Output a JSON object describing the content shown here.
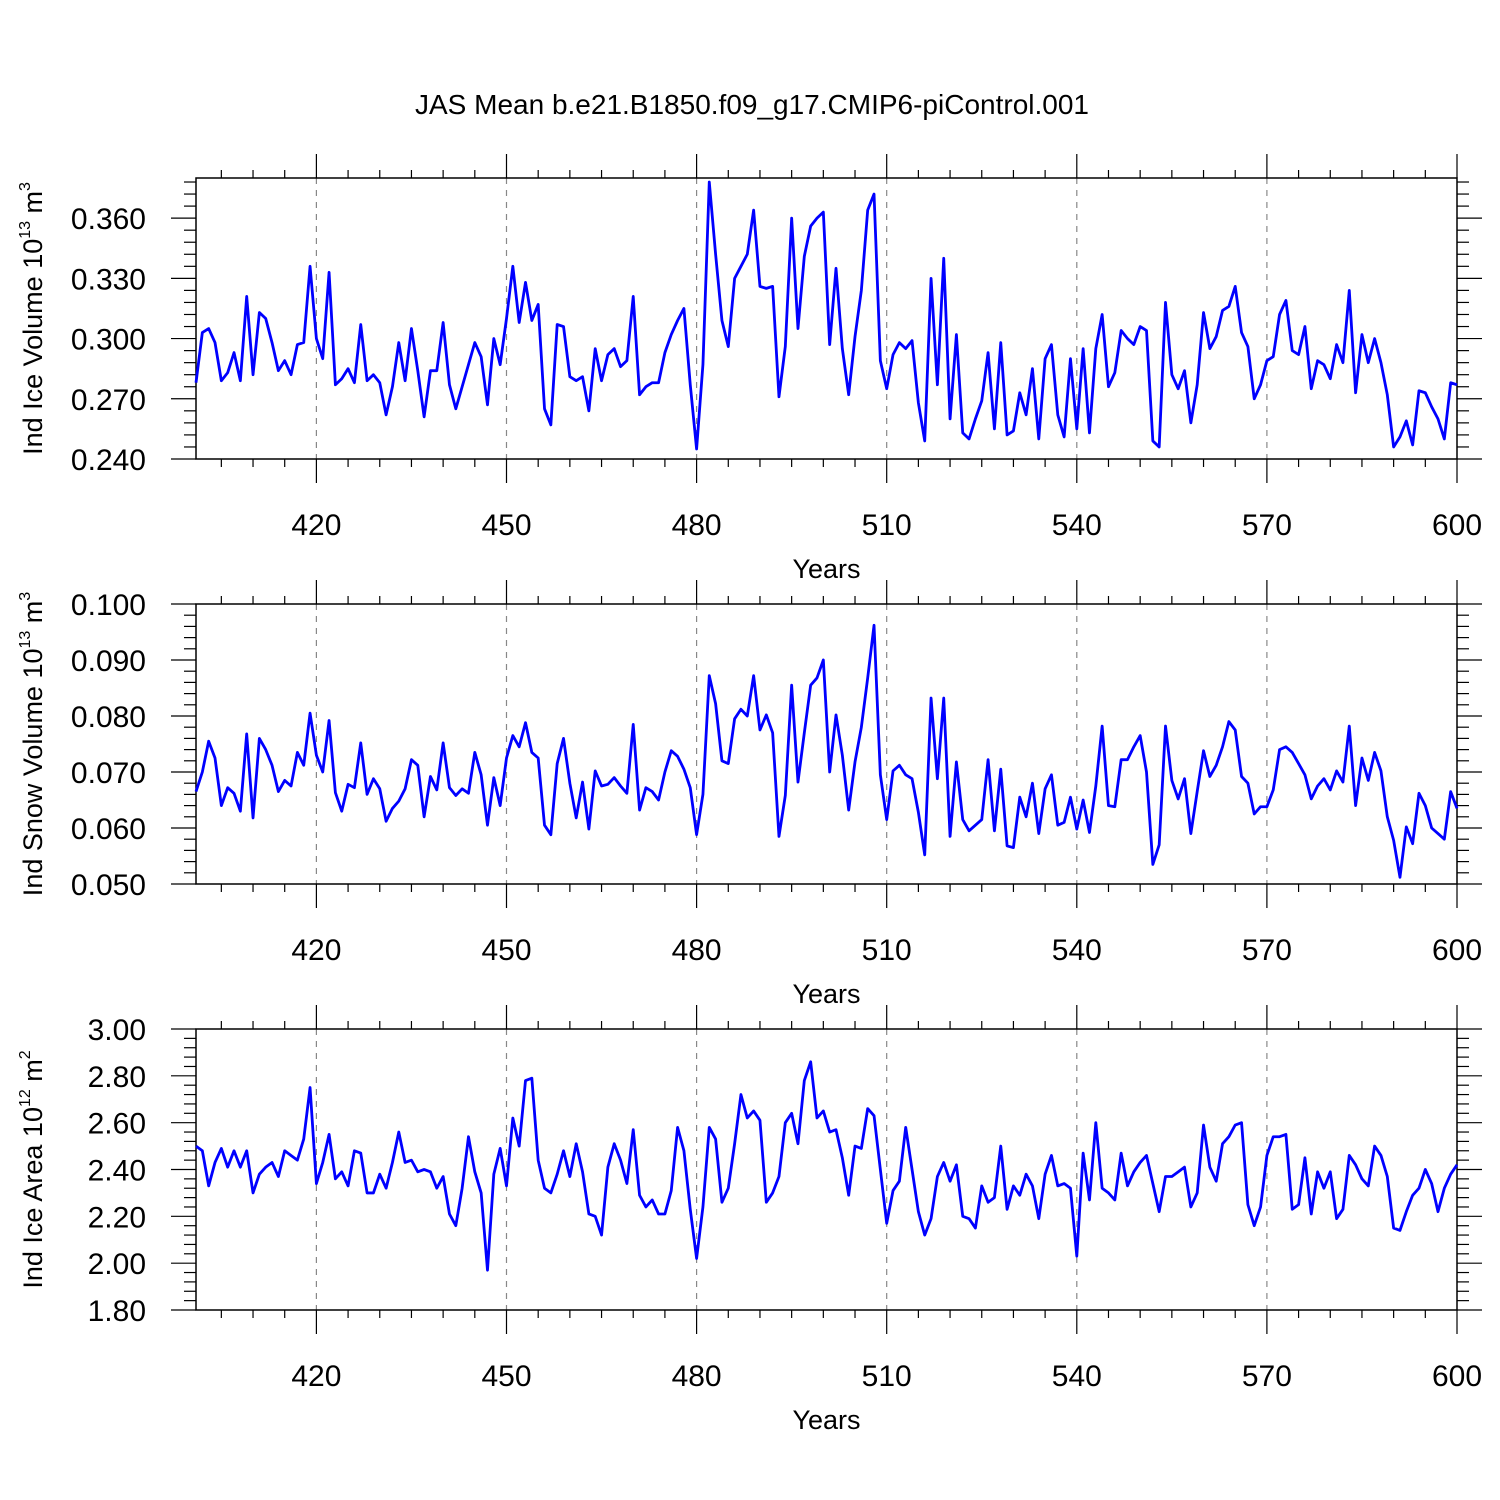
{
  "title": "JAS Mean b.e21.B1850.f09_g17.CMIP6-piControl.001",
  "colors": {
    "line": "#0000ff",
    "axis": "#000000",
    "grid": "#888888"
  },
  "chart_data": [
    {
      "type": "line",
      "id": "ice-volume",
      "ylabel_main": "Ind Ice Volume 10",
      "ylabel_exp": "13",
      "ylabel_unit": " m",
      "ylabel_unit_exp": "3",
      "xlabel": "Years",
      "xlim": [
        401,
        600
      ],
      "ylim": [
        0.24,
        0.38
      ],
      "yticks": [
        0.24,
        0.27,
        0.3,
        0.33,
        0.36
      ],
      "ytick_labels": [
        "0.240",
        "0.270",
        "0.300",
        "0.330",
        "0.360"
      ],
      "xticks": [
        420,
        450,
        480,
        510,
        540,
        570,
        600
      ],
      "xtick_labels": [
        "420",
        "450",
        "480",
        "510",
        "540",
        "570",
        "600"
      ],
      "grid_x": [
        420,
        450,
        480,
        510,
        540,
        570
      ],
      "x_start": 401,
      "values": [
        0.278,
        0.303,
        0.305,
        0.298,
        0.279,
        0.283,
        0.293,
        0.279,
        0.321,
        0.282,
        0.313,
        0.31,
        0.298,
        0.284,
        0.289,
        0.282,
        0.297,
        0.298,
        0.336,
        0.3,
        0.29,
        0.333,
        0.277,
        0.28,
        0.285,
        0.278,
        0.307,
        0.279,
        0.282,
        0.278,
        0.262,
        0.276,
        0.298,
        0.279,
        0.305,
        0.284,
        0.261,
        0.284,
        0.284,
        0.308,
        0.277,
        0.265,
        0.276,
        0.287,
        0.298,
        0.291,
        0.267,
        0.3,
        0.287,
        0.31,
        0.336,
        0.308,
        0.328,
        0.309,
        0.317,
        0.265,
        0.257,
        0.307,
        0.306,
        0.281,
        0.279,
        0.281,
        0.264,
        0.295,
        0.279,
        0.292,
        0.295,
        0.286,
        0.289,
        0.321,
        0.272,
        0.276,
        0.278,
        0.278,
        0.293,
        0.302,
        0.309,
        0.315,
        0.277,
        0.245,
        0.287,
        0.378,
        0.342,
        0.309,
        0.296,
        0.33,
        0.336,
        0.342,
        0.364,
        0.326,
        0.325,
        0.326,
        0.271,
        0.296,
        0.36,
        0.305,
        0.341,
        0.356,
        0.36,
        0.363,
        0.297,
        0.335,
        0.295,
        0.272,
        0.301,
        0.324,
        0.364,
        0.372,
        0.289,
        0.275,
        0.292,
        0.298,
        0.295,
        0.299,
        0.268,
        0.249,
        0.33,
        0.277,
        0.34,
        0.26,
        0.302,
        0.253,
        0.25,
        0.26,
        0.269,
        0.293,
        0.255,
        0.298,
        0.252,
        0.254,
        0.273,
        0.262,
        0.285,
        0.25,
        0.29,
        0.297,
        0.262,
        0.251,
        0.29,
        0.255,
        0.295,
        0.253,
        0.295,
        0.312,
        0.276,
        0.283,
        0.304,
        0.3,
        0.297,
        0.306,
        0.304,
        0.249,
        0.246,
        0.318,
        0.282,
        0.275,
        0.284,
        0.258,
        0.277,
        0.313,
        0.295,
        0.301,
        0.314,
        0.316,
        0.326,
        0.303,
        0.296,
        0.27,
        0.277,
        0.289,
        0.291,
        0.312,
        0.319,
        0.294,
        0.292,
        0.306,
        0.275,
        0.289,
        0.287,
        0.28,
        0.297,
        0.288,
        0.324,
        0.273,
        0.302,
        0.288,
        0.3,
        0.288,
        0.272,
        0.246,
        0.251,
        0.259,
        0.247,
        0.274,
        0.273,
        0.266,
        0.26,
        0.25,
        0.278,
        0.277
      ]
    },
    {
      "type": "line",
      "id": "snow-volume",
      "ylabel_main": "Ind Snow Volume 10",
      "ylabel_exp": "13",
      "ylabel_unit": " m",
      "ylabel_unit_exp": "3",
      "xlabel": "Years",
      "xlim": [
        401,
        600
      ],
      "ylim": [
        0.05,
        0.1
      ],
      "yticks": [
        0.05,
        0.06,
        0.07,
        0.08,
        0.09,
        0.1
      ],
      "ytick_labels": [
        "0.050",
        "0.060",
        "0.070",
        "0.080",
        "0.090",
        "0.100"
      ],
      "xticks": [
        420,
        450,
        480,
        510,
        540,
        570,
        600
      ],
      "xtick_labels": [
        "420",
        "450",
        "480",
        "510",
        "540",
        "570",
        "600"
      ],
      "grid_x": [
        420,
        450,
        480,
        510,
        540,
        570
      ],
      "x_start": 401,
      "values": [
        0.0665,
        0.07,
        0.0755,
        0.0725,
        0.064,
        0.0672,
        0.0662,
        0.063,
        0.0768,
        0.0618,
        0.076,
        0.074,
        0.0712,
        0.0665,
        0.0685,
        0.0675,
        0.0735,
        0.0712,
        0.0805,
        0.073,
        0.07,
        0.0792,
        0.0663,
        0.063,
        0.0678,
        0.0672,
        0.0752,
        0.066,
        0.0688,
        0.067,
        0.0612,
        0.0635,
        0.0648,
        0.067,
        0.0722,
        0.0712,
        0.062,
        0.0692,
        0.0668,
        0.0752,
        0.0672,
        0.0658,
        0.067,
        0.0662,
        0.0735,
        0.0695,
        0.0605,
        0.069,
        0.064,
        0.0725,
        0.0765,
        0.0745,
        0.0788,
        0.0735,
        0.0725,
        0.0605,
        0.0588,
        0.0715,
        0.076,
        0.068,
        0.0618,
        0.0682,
        0.0598,
        0.0702,
        0.0675,
        0.0678,
        0.069,
        0.0675,
        0.0662,
        0.0785,
        0.0632,
        0.0672,
        0.0665,
        0.065,
        0.07,
        0.0738,
        0.0728,
        0.0705,
        0.0672,
        0.0588,
        0.066,
        0.0872,
        0.0822,
        0.072,
        0.0715,
        0.0795,
        0.0812,
        0.08,
        0.0872,
        0.0775,
        0.0802,
        0.077,
        0.0585,
        0.0658,
        0.0855,
        0.0682,
        0.077,
        0.0855,
        0.0868,
        0.09,
        0.07,
        0.0802,
        0.073,
        0.0632,
        0.0718,
        0.078,
        0.0868,
        0.0962,
        0.0695,
        0.0615,
        0.0702,
        0.0712,
        0.0695,
        0.0688,
        0.0628,
        0.0552,
        0.0832,
        0.0688,
        0.0832,
        0.0585,
        0.0718,
        0.0615,
        0.0595,
        0.0605,
        0.0615,
        0.0722,
        0.0595,
        0.0705,
        0.0568,
        0.0565,
        0.0655,
        0.062,
        0.068,
        0.059,
        0.067,
        0.0695,
        0.0605,
        0.061,
        0.0655,
        0.0598,
        0.065,
        0.0592,
        0.0675,
        0.0782,
        0.064,
        0.0638,
        0.0722,
        0.0722,
        0.0745,
        0.0765,
        0.07,
        0.0535,
        0.057,
        0.0782,
        0.0685,
        0.0652,
        0.0688,
        0.059,
        0.0665,
        0.0738,
        0.0692,
        0.0712,
        0.0745,
        0.079,
        0.0775,
        0.0692,
        0.068,
        0.0625,
        0.0638,
        0.0638,
        0.0668,
        0.074,
        0.0745,
        0.0735,
        0.0715,
        0.0695,
        0.0652,
        0.0675,
        0.0688,
        0.0668,
        0.0702,
        0.0682,
        0.0782,
        0.064,
        0.0725,
        0.0685,
        0.0735,
        0.0702,
        0.062,
        0.0578,
        0.0512,
        0.0602,
        0.0572,
        0.0662,
        0.064,
        0.06,
        0.059,
        0.058,
        0.0665,
        0.0635
      ]
    },
    {
      "type": "line",
      "id": "ice-area",
      "ylabel_main": "Ind Ice Area 10",
      "ylabel_exp": "12",
      "ylabel_unit": " m",
      "ylabel_unit_exp": "2",
      "xlabel": "Years",
      "xlim": [
        401,
        600
      ],
      "ylim": [
        1.8,
        3.0
      ],
      "yticks": [
        1.8,
        2.0,
        2.2,
        2.4,
        2.6,
        2.8,
        3.0
      ],
      "ytick_labels": [
        "1.80",
        "2.00",
        "2.20",
        "2.40",
        "2.60",
        "2.80",
        "3.00"
      ],
      "xticks": [
        420,
        450,
        480,
        510,
        540,
        570,
        600
      ],
      "xtick_labels": [
        "420",
        "450",
        "480",
        "510",
        "540",
        "570",
        "600"
      ],
      "grid_x": [
        420,
        450,
        480,
        510,
        540,
        570
      ],
      "x_start": 401,
      "values": [
        2.5,
        2.48,
        2.33,
        2.43,
        2.49,
        2.41,
        2.48,
        2.41,
        2.48,
        2.3,
        2.38,
        2.41,
        2.43,
        2.37,
        2.48,
        2.46,
        2.44,
        2.53,
        2.75,
        2.34,
        2.43,
        2.55,
        2.36,
        2.39,
        2.33,
        2.48,
        2.47,
        2.3,
        2.3,
        2.38,
        2.32,
        2.43,
        2.56,
        2.43,
        2.44,
        2.39,
        2.4,
        2.39,
        2.32,
        2.37,
        2.21,
        2.16,
        2.32,
        2.54,
        2.39,
        2.3,
        1.97,
        2.38,
        2.49,
        2.33,
        2.62,
        2.5,
        2.78,
        2.79,
        2.44,
        2.32,
        2.3,
        2.38,
        2.48,
        2.37,
        2.51,
        2.39,
        2.21,
        2.2,
        2.12,
        2.41,
        2.51,
        2.44,
        2.34,
        2.57,
        2.29,
        2.24,
        2.27,
        2.21,
        2.21,
        2.31,
        2.58,
        2.48,
        2.23,
        2.02,
        2.24,
        2.58,
        2.53,
        2.26,
        2.32,
        2.51,
        2.72,
        2.62,
        2.65,
        2.61,
        2.26,
        2.3,
        2.37,
        2.6,
        2.64,
        2.51,
        2.78,
        2.86,
        2.62,
        2.65,
        2.56,
        2.57,
        2.45,
        2.29,
        2.5,
        2.49,
        2.66,
        2.63,
        2.4,
        2.17,
        2.31,
        2.35,
        2.58,
        2.4,
        2.22,
        2.12,
        2.19,
        2.37,
        2.43,
        2.35,
        2.42,
        2.2,
        2.19,
        2.15,
        2.33,
        2.26,
        2.28,
        2.5,
        2.23,
        2.33,
        2.29,
        2.38,
        2.33,
        2.19,
        2.38,
        2.46,
        2.33,
        2.34,
        2.32,
        2.03,
        2.47,
        2.27,
        2.6,
        2.32,
        2.3,
        2.27,
        2.47,
        2.33,
        2.39,
        2.43,
        2.46,
        2.34,
        2.22,
        2.37,
        2.37,
        2.39,
        2.41,
        2.24,
        2.3,
        2.59,
        2.41,
        2.35,
        2.51,
        2.54,
        2.59,
        2.6,
        2.25,
        2.16,
        2.24,
        2.46,
        2.54,
        2.54,
        2.55,
        2.23,
        2.25,
        2.45,
        2.21,
        2.39,
        2.32,
        2.39,
        2.19,
        2.23,
        2.46,
        2.42,
        2.36,
        2.33,
        2.5,
        2.46,
        2.37,
        2.15,
        2.14,
        2.22,
        2.29,
        2.32,
        2.4,
        2.34,
        2.22,
        2.32,
        2.38,
        2.42
      ]
    }
  ]
}
